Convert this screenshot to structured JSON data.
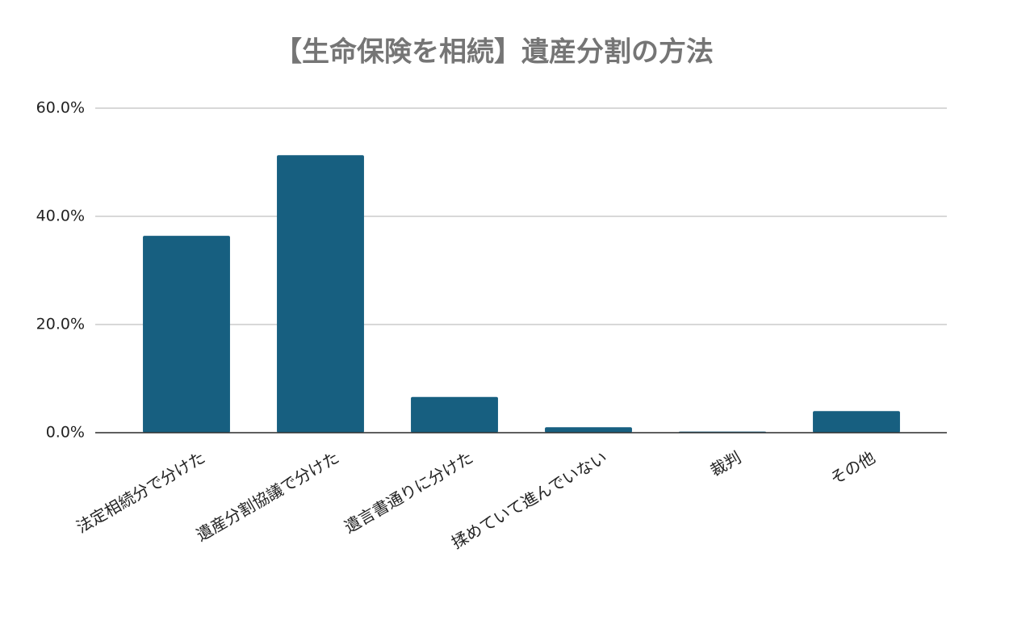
{
  "chart_data": {
    "type": "bar",
    "title": "【生命保険を相続】遺産分割の方法",
    "categories": [
      "法定相続分で分けた",
      "遺産分割協議で分けた",
      "遺言書通りに分けた",
      "揉めていて進んでいない",
      "裁判",
      "その他"
    ],
    "values": [
      36.4,
      51.3,
      6.6,
      1.0,
      0.2,
      4.0
    ],
    "color": "#175f80",
    "ylim": [
      0,
      60
    ],
    "yticks": [
      {
        "value": 0,
        "label": "0.0%"
      },
      {
        "value": 20,
        "label": "20.0%"
      },
      {
        "value": 40,
        "label": "40.0%"
      },
      {
        "value": 60,
        "label": "60.0%"
      }
    ],
    "grid": true
  }
}
